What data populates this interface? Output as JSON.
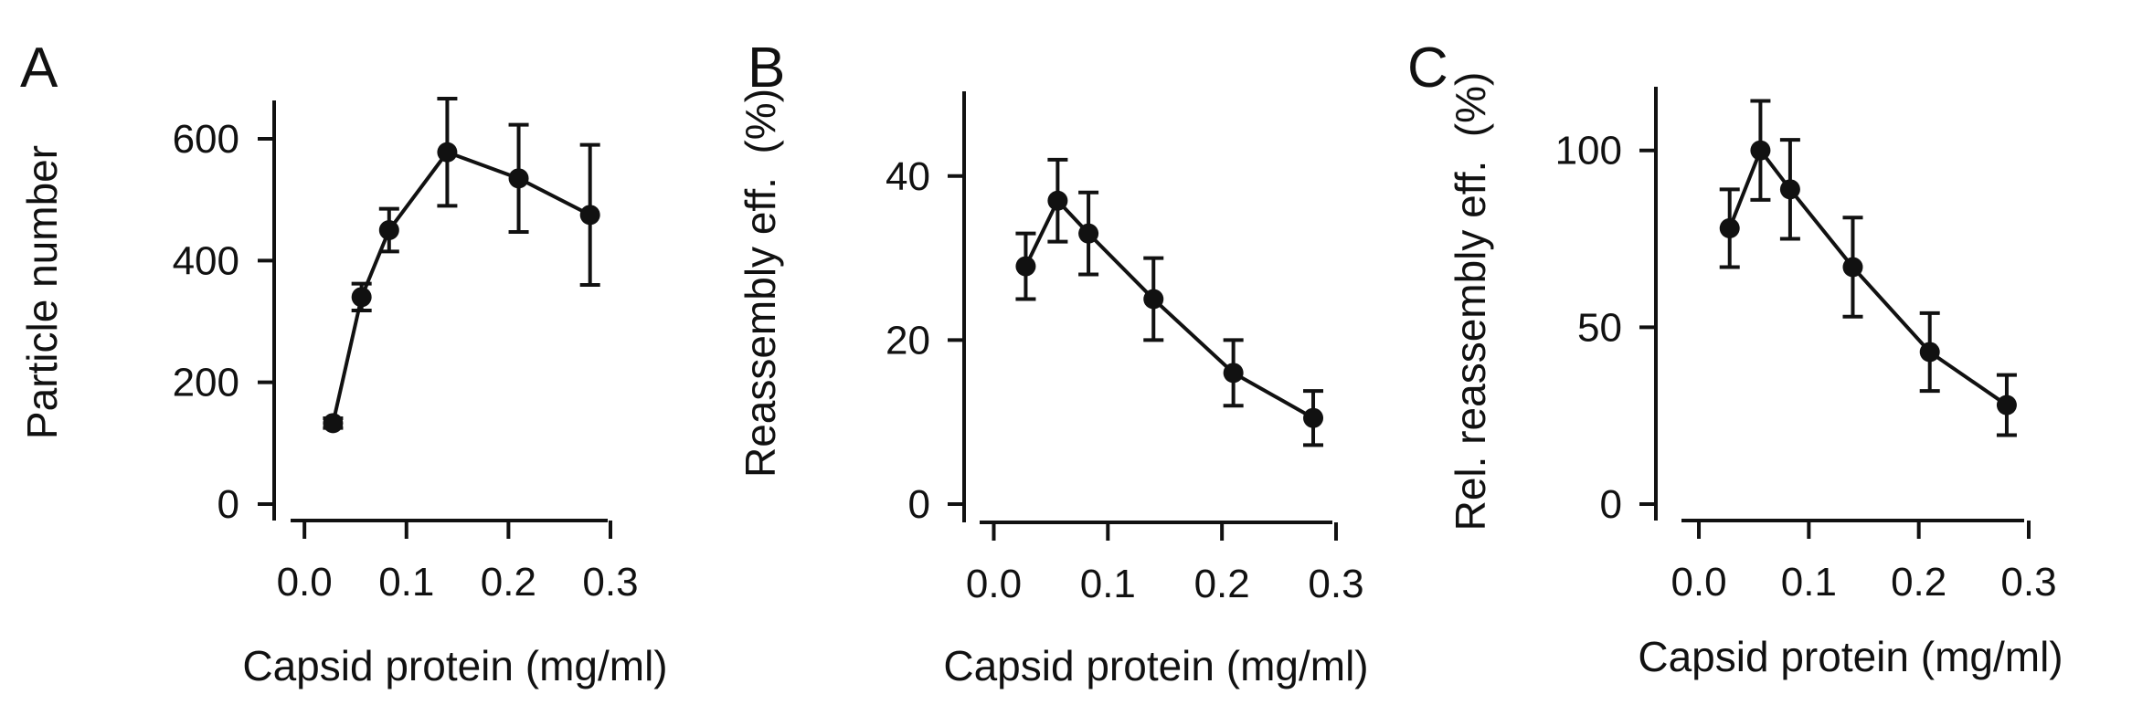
{
  "chart_data": [
    {
      "panel": "A",
      "type": "line",
      "title": "",
      "xlabel": "Capsid protein (mg/ml)",
      "ylabel": "Particle number",
      "xlim": [
        -0.01,
        0.3
      ],
      "ylim": [
        0,
        660
      ],
      "xticks": [
        0.0,
        0.1,
        0.2,
        0.3
      ],
      "xtick_labels": [
        "0.0",
        "0.1",
        "0.2",
        "0.3"
      ],
      "yticks": [
        0,
        200,
        400,
        600
      ],
      "ytick_labels": [
        "0",
        "200",
        "400",
        "600"
      ],
      "series": [
        {
          "name": "Particle number",
          "x": [
            0.028,
            0.056,
            0.083,
            0.14,
            0.21,
            0.28
          ],
          "y": [
            133,
            340,
            450,
            578,
            535,
            475
          ],
          "err": [
            8,
            22,
            35,
            88,
            88,
            115
          ]
        }
      ]
    },
    {
      "panel": "B",
      "type": "line",
      "title": "",
      "xlabel": "Capsid protein (mg/ml)",
      "ylabel": "Reassembly eff.  (%)",
      "xlim": [
        -0.01,
        0.3
      ],
      "ylim": [
        0,
        50
      ],
      "xticks": [
        0.0,
        0.1,
        0.2,
        0.3
      ],
      "xtick_labels": [
        "0.0",
        "0.1",
        "0.2",
        "0.3"
      ],
      "yticks": [
        0,
        20,
        40
      ],
      "ytick_labels": [
        "0",
        "20",
        "40"
      ],
      "series": [
        {
          "name": "Reassembly efficiency",
          "x": [
            0.028,
            0.056,
            0.083,
            0.14,
            0.21,
            0.28
          ],
          "y": [
            29,
            37,
            33,
            25,
            16,
            10.5
          ],
          "err": [
            4,
            5,
            5,
            5,
            4,
            3.3
          ]
        }
      ]
    },
    {
      "panel": "C",
      "type": "line",
      "title": "",
      "xlabel": "Capsid protein (mg/ml)",
      "ylabel": "Rel. reassembly eff.  (%)",
      "xlim": [
        -0.01,
        0.3
      ],
      "ylim": [
        0,
        118
      ],
      "xticks": [
        0.0,
        0.1,
        0.2,
        0.3
      ],
      "xtick_labels": [
        "0.0",
        "0.1",
        "0.2",
        "0.3"
      ],
      "yticks": [
        0,
        50,
        100
      ],
      "ytick_labels": [
        "0",
        "50",
        "100"
      ],
      "series": [
        {
          "name": "Relative reassembly efficiency",
          "x": [
            0.028,
            0.056,
            0.083,
            0.14,
            0.21,
            0.28
          ],
          "y": [
            78,
            100,
            89,
            67,
            43,
            28
          ],
          "err": [
            11,
            14,
            14,
            14,
            11,
            8.5
          ]
        }
      ]
    }
  ]
}
